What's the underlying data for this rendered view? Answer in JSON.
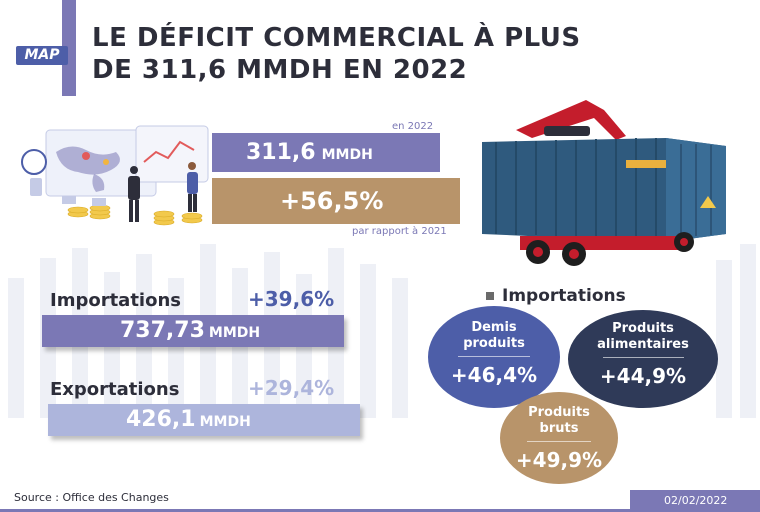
{
  "header": {
    "logo": "MAP",
    "title_line1": "LE DÉFICIT COMMERCIAL À PLUS",
    "title_line2": "DE 311,6 MMDH EN 2022"
  },
  "deficit": {
    "year_label": "en 2022",
    "value": "311,6",
    "unit": "MMDH",
    "change": "+56,5%",
    "comparison_label": "par rapport à 2021"
  },
  "importations": {
    "label": "Importations",
    "pct": "+39,6%",
    "value": "737,73",
    "unit": "MMDH"
  },
  "exportations": {
    "label": "Exportations",
    "pct": "+29,4%",
    "value": "426,1",
    "unit": "MMDH"
  },
  "imports_breakdown": {
    "heading": "Importations",
    "items": [
      {
        "label_line1": "Demis",
        "label_line2": "produits",
        "pct": "+46,4%",
        "color": "#4d5ea8"
      },
      {
        "label_line1": "Produits",
        "label_line2": "alimentaires",
        "pct": "+44,9%",
        "color": "#2f3a58"
      },
      {
        "label_line1": "Produits",
        "label_line2": "bruts",
        "pct": "+49,9%",
        "color": "#b8946a"
      }
    ]
  },
  "footer": {
    "source": "Source : Office des Changes",
    "date": "02/02/2022"
  },
  "colors": {
    "purple": "#7b78b5",
    "tan": "#b8946a",
    "blue": "#4d5ea8",
    "navy": "#2f3a58",
    "light_blue": "#adb5dc"
  }
}
